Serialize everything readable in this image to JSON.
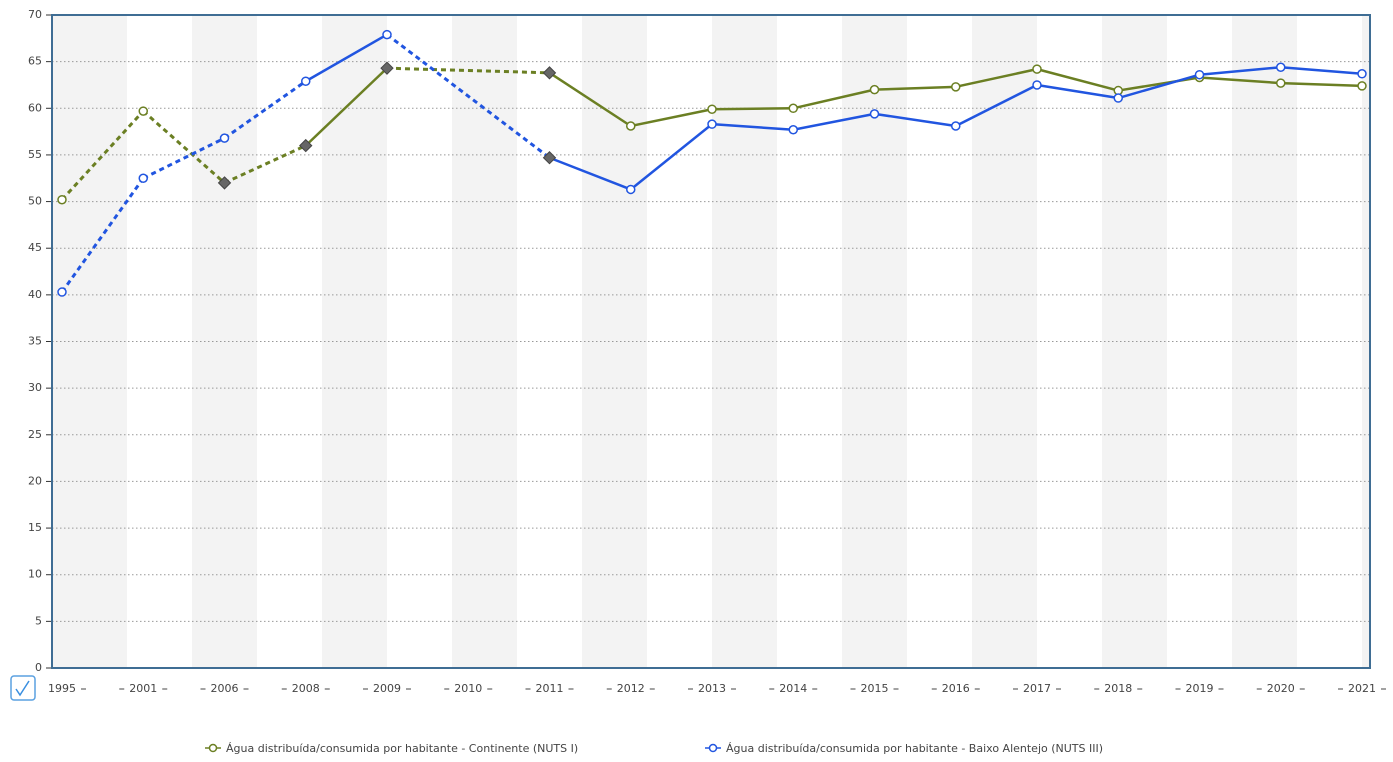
{
  "chart_data": {
    "type": "line",
    "categories": [
      "1995",
      "2001",
      "2006",
      "2008",
      "2009",
      "2010",
      "2011",
      "2012",
      "2013",
      "2014",
      "2015",
      "2016",
      "2017",
      "2018",
      "2019",
      "2020",
      "2021"
    ],
    "series": [
      {
        "name": "Água distribuída/consumida por habitante - Continente (NUTS I)",
        "color": "#6b7f23",
        "values": [
          50.2,
          59.7,
          52.0,
          56.0,
          64.3,
          null,
          63.8,
          58.1,
          59.9,
          60.0,
          62.0,
          62.3,
          64.2,
          61.9,
          63.3,
          62.7,
          62.4
        ],
        "markers": [
          "circle",
          "circle",
          "diamond",
          "diamond",
          "diamond",
          null,
          "diamond",
          "circle",
          "circle",
          "circle",
          "circle",
          "circle",
          "circle",
          "circle",
          "circle",
          "circle",
          "circle"
        ]
      },
      {
        "name": "Água distribuída/consumida por habitante - Baixo Alentejo (NUTS III)",
        "color": "#2155e0",
        "values": [
          40.3,
          52.5,
          56.8,
          62.9,
          67.9,
          null,
          54.7,
          51.3,
          58.3,
          57.7,
          59.4,
          58.1,
          62.5,
          61.1,
          63.6,
          64.4,
          63.7
        ],
        "markers": [
          "circle",
          "circle",
          "circle",
          "circle",
          "circle",
          null,
          "diamond",
          "circle",
          "circle",
          "circle",
          "circle",
          "circle",
          "circle",
          "circle",
          "circle",
          "circle",
          "circle"
        ]
      }
    ],
    "ylim": [
      0,
      70
    ],
    "yticks": [
      0,
      5,
      10,
      15,
      20,
      25,
      30,
      35,
      40,
      45,
      50,
      55,
      60,
      65,
      70
    ],
    "grid": true
  }
}
